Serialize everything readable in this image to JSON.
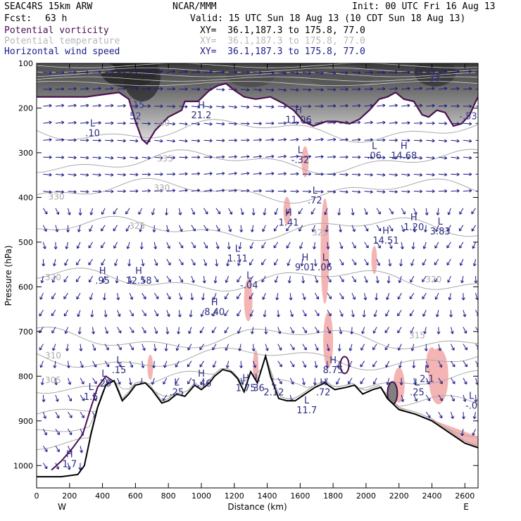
{
  "header": {
    "model": "SEAC4RS 15km ARW",
    "center": "NCAR/MMM",
    "init": "Init: 00 UTC Fri 16 Aug 13",
    "fcst_label": "Fcst:",
    "fcst_value": "63 h",
    "valid": "Valid: 15 UTC Sun 18 Aug 13 (10 CDT Sun 18 Aug 13)"
  },
  "legend": [
    {
      "name": "Potential vorticity",
      "xy": "XY=  36.1,187.3 to 175.8, 77.0",
      "color": "#4a1050"
    },
    {
      "name": "Potential temperature",
      "xy": "XY=  36.1,187.3 to 175.8, 77.0",
      "color": "#b8b8b8"
    },
    {
      "name": "Horizontal wind speed",
      "xy": "XY=  36.1,187.3 to 175.8, 77.0",
      "color": "#1a1a8a"
    }
  ],
  "chart_data": {
    "type": "cross-section",
    "xlabel": "Distance (km)",
    "ylabel": "Pressure (hPa)",
    "xlim": [
      0,
      2680
    ],
    "ylim": [
      1050,
      100
    ],
    "x_ticks": [
      "0",
      "200",
      "400",
      "600",
      "800",
      "1000",
      "1200",
      "1400",
      "1600",
      "1800",
      "2000",
      "2200",
      "2400",
      "2600"
    ],
    "y_ticks": [
      "100",
      "200",
      "300",
      "400",
      "500",
      "600",
      "700",
      "800",
      "900",
      "1000"
    ],
    "endpoint_left": "W",
    "endpoint_right": "E",
    "theta_labels": [
      {
        "text": "340",
        "x": 760,
        "p": 240
      },
      {
        "text": "335",
        "x": 780,
        "p": 320
      },
      {
        "text": "330",
        "x": 760,
        "p": 385
      },
      {
        "text": "330",
        "x": 120,
        "p": 405
      },
      {
        "text": "325",
        "x": 610,
        "p": 470
      },
      {
        "text": "325",
        "x": 1720,
        "p": 485
      },
      {
        "text": "320",
        "x": 100,
        "p": 585
      },
      {
        "text": "320",
        "x": 2410,
        "p": 590
      },
      {
        "text": "315",
        "x": 2310,
        "p": 715
      },
      {
        "text": "310",
        "x": 100,
        "p": 760
      },
      {
        "text": "305",
        "x": 100,
        "p": 815
      }
    ],
    "pv_high_labels": [
      {
        "text": "35",
        "x": 2420,
        "p": 140
      },
      {
        "text": "15",
        "x": 620,
        "p": 200
      },
      {
        "text": "52",
        "x": 600,
        "p": 225
      },
      {
        "text": "-.53",
        "x": 2620,
        "p": 225
      }
    ],
    "extrema": [
      {
        "type": "L",
        "value": ".10",
        "x": 340,
        "p": 260
      },
      {
        "type": "H",
        "value": "21.2",
        "x": 1000,
        "p": 220
      },
      {
        "type": "H",
        "value": "11.06",
        "x": 1590,
        "p": 230
      },
      {
        "type": "L",
        "value": "-.32",
        "x": 1600,
        "p": 320
      },
      {
        "type": "L",
        "value": ".06",
        "x": 2050,
        "p": 310
      },
      {
        "type": "H",
        "value": "14.68",
        "x": 2230,
        "p": 310
      },
      {
        "type": "L",
        "value": ".72",
        "x": 1690,
        "p": 410
      },
      {
        "type": "H",
        "value": "1.41",
        "x": 1530,
        "p": 460
      },
      {
        "type": "H",
        "value": "1.20",
        "x": 2290,
        "p": 470
      },
      {
        "type": "L",
        "value": "3.83",
        "x": 2450,
        "p": 480
      },
      {
        "type": "H",
        "value": "14.51",
        "x": 2120,
        "p": 500
      },
      {
        "type": "L",
        "value": "1.11",
        "x": 1220,
        "p": 540
      },
      {
        "type": "H",
        "value": "9.01",
        "x": 1630,
        "p": 560
      },
      {
        "type": "L",
        "value": ".06",
        "x": 1750,
        "p": 560
      },
      {
        "type": "H",
        "value": ".95",
        "x": 400,
        "p": 590
      },
      {
        "type": "H",
        "value": "12.58",
        "x": 620,
        "p": 590
      },
      {
        "type": "L",
        "value": "-.04",
        "x": 1290,
        "p": 600
      },
      {
        "type": "H",
        "value": "8.40",
        "x": 1080,
        "p": 660
      },
      {
        "type": "L",
        "value": ".15",
        "x": 500,
        "p": 790
      },
      {
        "type": "L",
        "value": ".29",
        "x": 410,
        "p": 820
      },
      {
        "type": "L",
        "value": "1.5",
        "x": 330,
        "p": 850
      },
      {
        "type": "L",
        "value": ".25",
        "x": 850,
        "p": 840
      },
      {
        "type": "H",
        "value": "1.46",
        "x": 1000,
        "p": 820
      },
      {
        "type": "H",
        "value": "1.75",
        "x": 1270,
        "p": 830
      },
      {
        "type": "L",
        "value": ".36",
        "x": 1340,
        "p": 830
      },
      {
        "type": "L",
        "value": "2.12",
        "x": 1440,
        "p": 840
      },
      {
        "type": "H",
        "value": "8.75",
        "x": 1800,
        "p": 790
      },
      {
        "type": "H",
        "value": ".72",
        "x": 1740,
        "p": 840
      },
      {
        "type": "L",
        "value": ".25",
        "x": 2310,
        "p": 840
      },
      {
        "type": "L",
        "value": "2.1",
        "x": 2370,
        "p": 810
      },
      {
        "type": "L",
        "value": "-.0",
        "x": 2640,
        "p": 870
      },
      {
        "type": "L",
        "value": "11.7",
        "x": 1640,
        "p": 880
      },
      {
        "type": "H",
        "value": "1.7",
        "x": 200,
        "p": 1000
      }
    ],
    "terrain_km_hPa": [
      [
        0,
        1025
      ],
      [
        150,
        1025
      ],
      [
        250,
        1020
      ],
      [
        290,
        1000
      ],
      [
        330,
        930
      ],
      [
        370,
        870
      ],
      [
        420,
        820
      ],
      [
        470,
        810
      ],
      [
        520,
        855
      ],
      [
        560,
        840
      ],
      [
        600,
        820
      ],
      [
        660,
        815
      ],
      [
        700,
        830
      ],
      [
        760,
        860
      ],
      [
        800,
        855
      ],
      [
        850,
        840
      ],
      [
        900,
        845
      ],
      [
        960,
        820
      ],
      [
        1000,
        830
      ],
      [
        1050,
        815
      ],
      [
        1080,
        800
      ],
      [
        1130,
        785
      ],
      [
        1180,
        790
      ],
      [
        1220,
        805
      ],
      [
        1260,
        835
      ],
      [
        1300,
        790
      ],
      [
        1340,
        815
      ],
      [
        1390,
        755
      ],
      [
        1420,
        800
      ],
      [
        1470,
        850
      ],
      [
        1520,
        855
      ],
      [
        1570,
        855
      ],
      [
        1630,
        840
      ],
      [
        1690,
        825
      ],
      [
        1750,
        815
      ],
      [
        1810,
        830
      ],
      [
        1880,
        825
      ],
      [
        1930,
        820
      ],
      [
        1980,
        840
      ],
      [
        2040,
        830
      ],
      [
        2090,
        825
      ],
      [
        2130,
        850
      ],
      [
        2200,
        875
      ],
      [
        2300,
        885
      ],
      [
        2400,
        900
      ],
      [
        2500,
        925
      ],
      [
        2600,
        950
      ],
      [
        2680,
        960
      ]
    ],
    "tropopause_pv2_km_hPa": [
      [
        0,
        175
      ],
      [
        100,
        175
      ],
      [
        200,
        175
      ],
      [
        300,
        175
      ],
      [
        400,
        170
      ],
      [
        500,
        165
      ],
      [
        560,
        180
      ],
      [
        600,
        230
      ],
      [
        640,
        270
      ],
      [
        670,
        280
      ],
      [
        720,
        250
      ],
      [
        800,
        220
      ],
      [
        880,
        205
      ],
      [
        900,
        185
      ],
      [
        980,
        185
      ],
      [
        1050,
        160
      ],
      [
        1100,
        150
      ],
      [
        1150,
        145
      ],
      [
        1200,
        160
      ],
      [
        1260,
        175
      ],
      [
        1330,
        180
      ],
      [
        1420,
        175
      ],
      [
        1500,
        190
      ],
      [
        1560,
        205
      ],
      [
        1620,
        230
      ],
      [
        1680,
        240
      ],
      [
        1760,
        230
      ],
      [
        1820,
        230
      ],
      [
        1900,
        235
      ],
      [
        1960,
        225
      ],
      [
        2020,
        205
      ],
      [
        2080,
        180
      ],
      [
        2130,
        175
      ],
      [
        2180,
        165
      ],
      [
        2230,
        180
      ],
      [
        2290,
        185
      ],
      [
        2340,
        215
      ],
      [
        2380,
        220
      ],
      [
        2430,
        205
      ],
      [
        2480,
        210
      ],
      [
        2530,
        240
      ],
      [
        2580,
        235
      ],
      [
        2630,
        215
      ],
      [
        2660,
        190
      ],
      [
        2680,
        175
      ]
    ]
  }
}
